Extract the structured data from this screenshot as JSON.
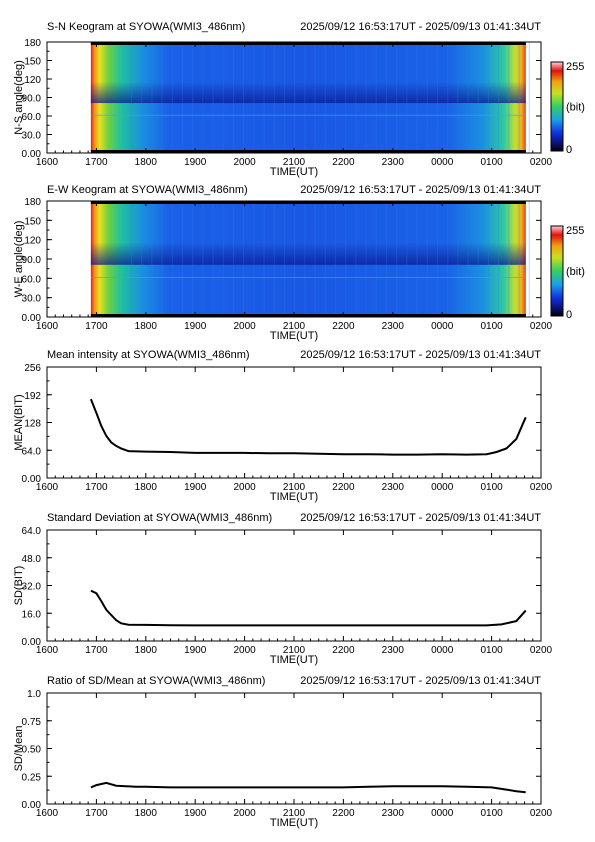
{
  "header_time_range": "2025/09/12 16:53:17UT - 2025/09/13 01:41:34UT",
  "time_ticks": [
    "1600",
    "1700",
    "1800",
    "1900",
    "2000",
    "2100",
    "2200",
    "2300",
    "0000",
    "0100",
    "0200"
  ],
  "colorbar": {
    "max_label": "255",
    "unit_label": "(bit)",
    "min_label": "0"
  },
  "chart_data": [
    {
      "type": "heatmap",
      "title": "S-N Keogram at SYOWA(WMI3_486nm)",
      "xlabel": "TIME(UT)",
      "ylabel": "N-S angle(deg)",
      "yticks": [
        "0.00",
        "30.0",
        "60.0",
        "90.0",
        "120",
        "150",
        "180"
      ],
      "ylim": [
        0,
        180
      ],
      "x_range_hours": [
        16.0,
        26.0
      ],
      "data_start_hour": 16.888,
      "data_end_hour": 25.693,
      "colorbar_range": [
        0,
        255
      ]
    },
    {
      "type": "heatmap",
      "title": "E-W Keogram at SYOWA(WMI3_486nm)",
      "xlabel": "TIME(UT)",
      "ylabel": "W-E angle(deg)",
      "yticks": [
        "0.00",
        "30.0",
        "60.0",
        "90.0",
        "120",
        "150",
        "180"
      ],
      "ylim": [
        0,
        180
      ],
      "x_range_hours": [
        16.0,
        26.0
      ],
      "data_start_hour": 16.888,
      "data_end_hour": 25.693,
      "colorbar_range": [
        0,
        255
      ]
    },
    {
      "type": "line",
      "title": "Mean intensity at SYOWA(WMI3_486nm)",
      "xlabel": "TIME(UT)",
      "ylabel": "MEAN(BIT)",
      "yticks": [
        "0.00",
        "64.0",
        "128",
        "192",
        "256"
      ],
      "ylim": [
        0,
        256
      ],
      "x": [
        16.888,
        17.0,
        17.1,
        17.2,
        17.3,
        17.4,
        17.5,
        17.65,
        18.0,
        18.5,
        19.0,
        19.5,
        20.0,
        20.5,
        21.0,
        21.5,
        22.0,
        22.5,
        23.0,
        23.5,
        24.0,
        24.5,
        24.9,
        25.1,
        25.3,
        25.5,
        25.69
      ],
      "y": [
        182,
        150,
        120,
        97,
        82,
        74,
        68,
        62,
        61,
        60,
        58,
        58,
        58,
        57,
        57,
        56,
        55,
        55,
        54,
        54,
        55,
        54,
        55,
        60,
        68,
        90,
        140
      ]
    },
    {
      "type": "line",
      "title": "Standard Deviation at SYOWA(WMI3_486nm)",
      "xlabel": "TIME(UT)",
      "ylabel": "SD(BIT)",
      "yticks": [
        "0.00",
        "16.0",
        "32.0",
        "48.0",
        "64.0"
      ],
      "ylim": [
        0,
        64
      ],
      "x": [
        16.888,
        17.0,
        17.1,
        17.2,
        17.3,
        17.4,
        17.5,
        17.65,
        18.0,
        18.5,
        19.0,
        19.5,
        20.0,
        20.5,
        21.0,
        21.5,
        22.0,
        22.5,
        23.0,
        23.5,
        24.0,
        24.5,
        24.9,
        25.2,
        25.5,
        25.69
      ],
      "y": [
        29,
        27.5,
        23,
        18,
        15,
        12,
        10.2,
        9.4,
        9.3,
        9.1,
        9.0,
        9.0,
        9.0,
        9.0,
        9.0,
        9.0,
        9.0,
        9.0,
        9.0,
        9.0,
        9.0,
        9.0,
        9.0,
        9.6,
        11.5,
        17.5
      ]
    },
    {
      "type": "line",
      "title": "Ratio of SD/Mean at SYOWA(WMI3_486nm)",
      "xlabel": "TIME(UT)",
      "ylabel": "SD/Mean",
      "yticks": [
        "0.00",
        "0.25",
        "0.50",
        "0.75",
        "1.0"
      ],
      "ylim": [
        0,
        1.0
      ],
      "x": [
        16.888,
        17.0,
        17.2,
        17.4,
        17.6,
        17.8,
        18.0,
        18.5,
        19.0,
        19.5,
        20.0,
        20.5,
        21.0,
        21.5,
        22.0,
        22.5,
        23.0,
        23.5,
        24.0,
        24.5,
        25.0,
        25.3,
        25.5,
        25.69
      ],
      "y": [
        0.15,
        0.17,
        0.19,
        0.165,
        0.16,
        0.155,
        0.155,
        0.15,
        0.15,
        0.15,
        0.15,
        0.15,
        0.15,
        0.15,
        0.15,
        0.155,
        0.16,
        0.16,
        0.16,
        0.155,
        0.15,
        0.13,
        0.115,
        0.105
      ]
    }
  ]
}
